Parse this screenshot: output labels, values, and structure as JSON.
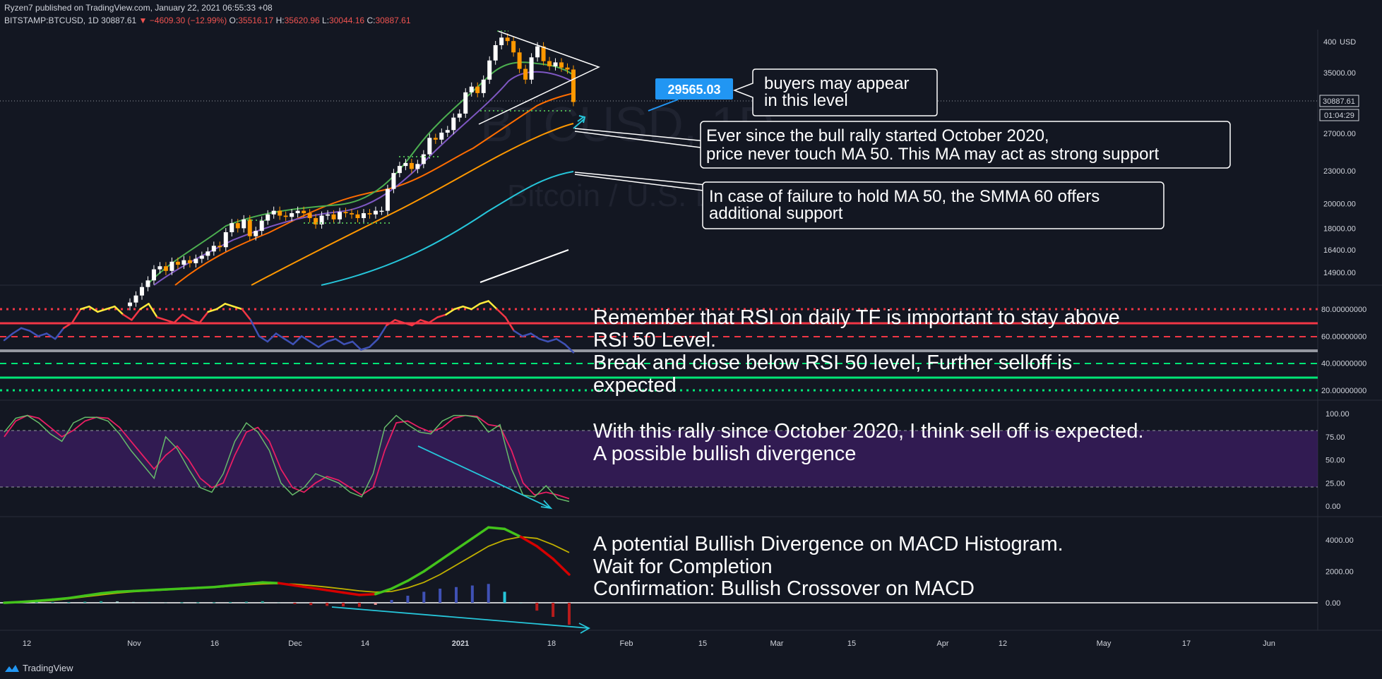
{
  "header": {
    "publisher": "Ryzen7 published on TradingView.com, January 22, 2021 06:55:33 +08",
    "symbol": "BITSTAMP:BTCUSD, 1D",
    "last": "30887.61",
    "change": "−4609.30 (−12.99%)",
    "o_label": "O:",
    "o": "35516.17",
    "h_label": "H:",
    "h": "35620.96",
    "l_label": "L:",
    "l": "30044.16",
    "c_label": "C:",
    "c": "30887.61"
  },
  "watermark": {
    "symbol": "BTCUSD, 1D",
    "name": "Bitcoin / U.S. Dollar"
  },
  "price_scale": {
    "currency": "USD",
    "current_price": "30887.61",
    "countdown": "01:04:29",
    "buyer_level_tag": "29565.03"
  },
  "annotations": {
    "buyers": [
      "buyers may appear",
      "in this level"
    ],
    "ma50": [
      "Ever since the bull rally started October 2020,",
      "price never touch MA 50. This MA may act as strong support"
    ],
    "smma60": [
      "In case of failure to hold MA 50, the SMMA 60 offers",
      "additional support"
    ],
    "rsi": [
      "Remember that RSI on daily TF is important to stay above",
      "RSI 50 Level.",
      "Break and close below RSI 50 level, Further selloff is",
      "expected"
    ],
    "stoch": [
      "With this rally since October 2020, I think sell off is expected.",
      "A possible bullish divergence"
    ],
    "macd": [
      "A potential Bullish Divergence on MACD Histogram.",
      "Wait for Completion",
      "Confirmation: Bullish Crossover on MACD"
    ]
  },
  "brand": "TradingView",
  "colors": {
    "background": "#131722",
    "up": "#ffffff",
    "down": "#ff9800",
    "accent_tag": "#2196f3",
    "ema_fast": "#4caf50",
    "ema_mid": "#7e57c2",
    "ema_slow": "#ff6d00",
    "ma50": "#ff9800",
    "smma60": "#26c6da",
    "ma200": "#ffffff",
    "rsi_line": "#3f51b5",
    "stoch_k": "#66bb6a",
    "stoch_d": "#e91e63"
  },
  "chart_data": {
    "type": "candlestick",
    "title": "",
    "x": [
      "12",
      "Nov",
      "16",
      "Dec",
      "14",
      "2021",
      "18",
      "Feb",
      "15",
      "Mar",
      "15",
      "Apr",
      "12",
      "May",
      "17",
      "Jun"
    ],
    "price_axis_ticks": [
      "40000.00",
      "35000.00",
      "27000.00",
      "23000.00",
      "20000.00",
      "18000.00",
      "16400.00",
      "14900.00"
    ],
    "price_axis_top_label": "400",
    "rsi_axis_ticks": [
      "80.00000000",
      "60.00000000",
      "40.00000000",
      "20.00000000"
    ],
    "stoch_axis_ticks": [
      "100.00",
      "75.00",
      "50.00",
      "25.00",
      "0.00"
    ],
    "macd_axis_ticks": [
      "4000.00",
      "2000.00",
      "0.00"
    ],
    "rsi_levels": [
      80,
      70,
      60,
      50,
      40,
      30,
      20
    ],
    "price_close": [
      13100,
      13500,
      14000,
      14400,
      15100,
      15300,
      15000,
      15600,
      15400,
      15700,
      15500,
      15800,
      16000,
      16300,
      16700,
      16600,
      17700,
      18400,
      18000,
      18700,
      17400,
      17800,
      18600,
      19100,
      19400,
      19000,
      18900,
      19200,
      19400,
      19200,
      18800,
      18300,
      19000,
      19100,
      18700,
      19300,
      19200,
      19100,
      18800,
      19200,
      19100,
      19400,
      19400,
      21300,
      22800,
      23500,
      23800,
      23200,
      23700,
      24700,
      26500,
      26300,
      27100,
      27400,
      28900,
      29400,
      32200,
      33000,
      32100,
      34000,
      36900,
      39400,
      40700,
      40100,
      38200,
      35600,
      34000,
      37400,
      39200,
      36800,
      36000,
      36600,
      35800,
      35500,
      30900
    ],
    "ma50_approx": [
      11000,
      11200,
      11400,
      11600,
      11800,
      12000,
      12200,
      12500,
      12700,
      13000,
      13300,
      13600,
      13900,
      14200,
      14500,
      14800,
      15100,
      15500,
      15900,
      16300,
      16700,
      17100,
      17500,
      17900,
      18400,
      18900,
      19400,
      20000,
      20600,
      21300,
      22000,
      22800,
      23600,
      24400,
      25300,
      26200,
      27200,
      28200,
      29200
    ],
    "smma60_approx": [
      10800,
      11000,
      11200,
      11400,
      11600,
      11800,
      12000,
      12200,
      12400,
      12600,
      12800,
      13000,
      13300,
      13600,
      13900,
      14200,
      14500,
      14800,
      15200,
      15600,
      16000,
      16400,
      16800,
      17200,
      17700,
      18200,
      18700,
      19200,
      19800,
      20400,
      21000,
      21600,
      22200,
      22900
    ],
    "rsi": [
      57,
      62,
      66,
      64,
      60,
      62,
      58,
      66,
      70,
      80,
      82,
      78,
      80,
      82,
      76,
      72,
      80,
      84,
      74,
      72,
      70,
      76,
      72,
      70,
      78,
      80,
      84,
      82,
      80,
      72,
      60,
      56,
      62,
      58,
      54,
      60,
      56,
      52,
      56,
      58,
      54,
      56,
      50,
      52,
      58,
      68,
      72,
      70,
      68,
      72,
      70,
      74,
      76,
      80,
      82,
      80,
      84,
      86,
      80,
      74,
      64,
      60,
      62,
      58,
      56,
      58,
      54,
      48
    ],
    "stoch_k": [
      80,
      95,
      98,
      90,
      78,
      70,
      90,
      96,
      96,
      92,
      78,
      60,
      45,
      30,
      75,
      62,
      40,
      20,
      15,
      35,
      70,
      90,
      80,
      60,
      25,
      12,
      20,
      35,
      30,
      25,
      15,
      10,
      35,
      85,
      98,
      88,
      80,
      78,
      92,
      98,
      98,
      96,
      80,
      88,
      40,
      12,
      10,
      22,
      8,
      5
    ],
    "stoch_d": [
      75,
      92,
      98,
      95,
      85,
      75,
      82,
      92,
      96,
      95,
      85,
      70,
      55,
      40,
      55,
      65,
      50,
      30,
      20,
      25,
      55,
      80,
      85,
      70,
      40,
      20,
      15,
      25,
      32,
      28,
      20,
      12,
      20,
      60,
      90,
      92,
      85,
      80,
      85,
      95,
      98,
      97,
      88,
      86,
      60,
      25,
      12,
      15,
      12,
      8
    ],
    "macd_line": [
      0,
      50,
      120,
      200,
      300,
      450,
      600,
      700,
      750,
      800,
      850,
      900,
      950,
      1000,
      1100,
      1200,
      1300,
      1250,
      1100,
      950,
      800,
      650,
      500,
      550,
      900,
      1400,
      2000,
      2700,
      3400,
      4100,
      4800,
      4700,
      4200,
      3600,
      2800,
      1800
    ],
    "macd_signal": [
      0,
      30,
      80,
      150,
      250,
      380,
      500,
      620,
      700,
      760,
      820,
      870,
      920,
      970,
      1050,
      1130,
      1200,
      1220,
      1180,
      1100,
      1000,
      880,
      760,
      680,
      720,
      950,
      1300,
      1800,
      2400,
      3000,
      3600,
      4000,
      4200,
      4100,
      3700,
      3200
    ],
    "macd_histogram": [
      0,
      20,
      40,
      50,
      50,
      70,
      100,
      80,
      50,
      40,
      30,
      30,
      30,
      30,
      50,
      70,
      100,
      30,
      -80,
      -150,
      -200,
      -230,
      -260,
      -130,
      180,
      450,
      700,
      900,
      1000,
      1100,
      1200,
      700,
      0,
      -500,
      -900,
      -1400
    ]
  }
}
